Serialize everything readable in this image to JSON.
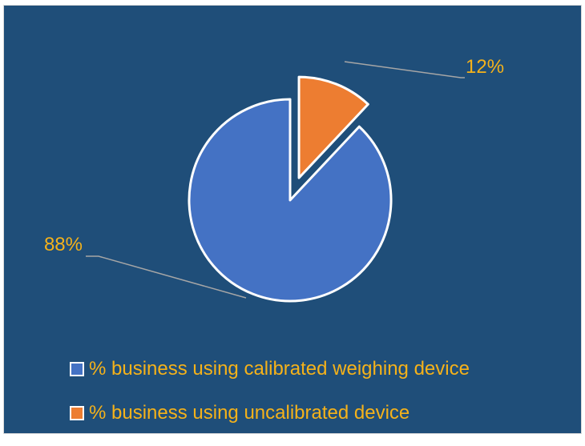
{
  "chart_data": {
    "type": "pie",
    "title": "",
    "series": [
      {
        "values": [
          88,
          12
        ]
      }
    ],
    "categories": [
      "% business using calibrated weighing device",
      "% business using uncalibrated device"
    ],
    "values": [
      88,
      12
    ],
    "data_labels": [
      "88%",
      "12%"
    ],
    "colors": [
      "#4472c4",
      "#ed7d31"
    ],
    "legend_position": "bottom",
    "exploded_slice": 1,
    "background": "#1f4e79"
  }
}
